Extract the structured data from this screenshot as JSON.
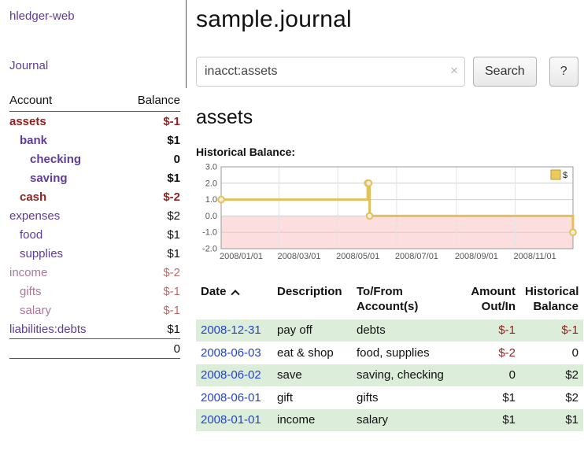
{
  "app": {
    "title": "hledger-web"
  },
  "sidebar": {
    "journal_link": "Journal",
    "accounts": {
      "col_account": "Account",
      "col_balance": "Balance",
      "rows": [
        {
          "name": "assets",
          "balance": "$-1",
          "indent": 0,
          "bold": true,
          "name_style": "neg",
          "bal_style": "neg"
        },
        {
          "name": "bank",
          "balance": "$1",
          "indent": 1,
          "bold": true,
          "name_style": "link",
          "bal_style": "pos"
        },
        {
          "name": "checking",
          "balance": "0",
          "indent": 2,
          "bold": true,
          "name_style": "link",
          "bal_style": "pos"
        },
        {
          "name": "saving",
          "balance": "$1",
          "indent": 2,
          "bold": true,
          "name_style": "link",
          "bal_style": "pos"
        },
        {
          "name": "cash",
          "balance": "$-2",
          "indent": 1,
          "bold": true,
          "name_style": "neg",
          "bal_style": "neg"
        },
        {
          "name": "expenses",
          "balance": "$2",
          "indent": 0,
          "bold": false,
          "name_style": "link",
          "bal_style": "pos"
        },
        {
          "name": "food",
          "balance": "$1",
          "indent": 1,
          "bold": false,
          "name_style": "link",
          "bal_style": "pos"
        },
        {
          "name": "supplies",
          "balance": "$1",
          "indent": 1,
          "bold": false,
          "name_style": "link",
          "bal_style": "pos"
        },
        {
          "name": "income",
          "balance": "$-2",
          "indent": 0,
          "bold": false,
          "name_style": "soft",
          "bal_style": "softneg"
        },
        {
          "name": "gifts",
          "balance": "$-1",
          "indent": 1,
          "bold": false,
          "name_style": "soft",
          "bal_style": "softneg"
        },
        {
          "name": "salary",
          "balance": "$-1",
          "indent": 1,
          "bold": false,
          "name_style": "soft",
          "bal_style": "softneg"
        },
        {
          "name": "liabilities:debts",
          "balance": "$1",
          "indent": 0,
          "bold": false,
          "name_style": "link",
          "bal_style": "pos"
        }
      ],
      "total": "0"
    }
  },
  "main": {
    "title": "sample.journal",
    "search": {
      "value": "inacct:assets",
      "clear": "×",
      "button": "Search",
      "help": "?"
    },
    "heading": "assets",
    "chart_label": "Historical Balance:"
  },
  "chart_data": {
    "type": "line",
    "step": true,
    "title": "Historical Balance:",
    "series": [
      {
        "name": "$",
        "points": [
          {
            "x": "2008-01-01",
            "y": 1
          },
          {
            "x": "2008-06-01",
            "y": 2
          },
          {
            "x": "2008-06-02",
            "y": 2
          },
          {
            "x": "2008-06-03",
            "y": 0
          },
          {
            "x": "2008-12-31",
            "y": -1
          }
        ]
      }
    ],
    "ylim": [
      -2,
      3
    ],
    "yticks": [
      3.0,
      2.0,
      1.0,
      0.0,
      -1.0,
      -2.0
    ],
    "xrange": [
      "2008-01-01",
      "2008-12-31"
    ],
    "xticks": [
      "2008/01/01",
      "2008/03/01",
      "2008/05/01",
      "2008/07/01",
      "2008/09/01",
      "2008/11/01"
    ],
    "legend": {
      "label": "$",
      "position": "top-right"
    },
    "line_color": "#e3c05a",
    "marker_fill": "#faf0d2",
    "negative_fill": "rgba(246,160,160,0.35)",
    "grid": true
  },
  "register": {
    "sort": "ascending",
    "headers": {
      "date": "Date",
      "description": "Description",
      "accounts": "To/From Account(s)",
      "amount": "Amount Out/In",
      "balance": "Historical Balance"
    },
    "rows": [
      {
        "date": "2008-12-31",
        "description": "pay off",
        "accounts": "debts",
        "amount": "$-1",
        "balance": "$-1",
        "amount_neg": true,
        "balance_neg": true,
        "shaded": true
      },
      {
        "date": "2008-06-03",
        "description": "eat & shop",
        "accounts": "food, supplies",
        "amount": "$-2",
        "balance": "0",
        "amount_neg": true,
        "balance_neg": false,
        "shaded": false
      },
      {
        "date": "2008-06-02",
        "description": "save",
        "accounts": "saving, checking",
        "amount": "0",
        "balance": "$2",
        "amount_neg": false,
        "balance_neg": false,
        "shaded": true
      },
      {
        "date": "2008-06-01",
        "description": "gift",
        "accounts": "gifts",
        "amount": "$1",
        "balance": "$2",
        "amount_neg": false,
        "balance_neg": false,
        "shaded": false
      },
      {
        "date": "2008-01-01",
        "description": "income",
        "accounts": "salary",
        "amount": "$1",
        "balance": "$1",
        "amount_neg": false,
        "balance_neg": false,
        "shaded": true
      }
    ]
  },
  "colors": {
    "link_purple": "#5e3c99",
    "date_blue": "#2743c6",
    "negative_red": "#942222",
    "soft_negative": "#bf6a6a",
    "row_green": "#dcedda",
    "chart_gold": "#e3c05a",
    "chart_negative_area": "#f9d9d9"
  }
}
